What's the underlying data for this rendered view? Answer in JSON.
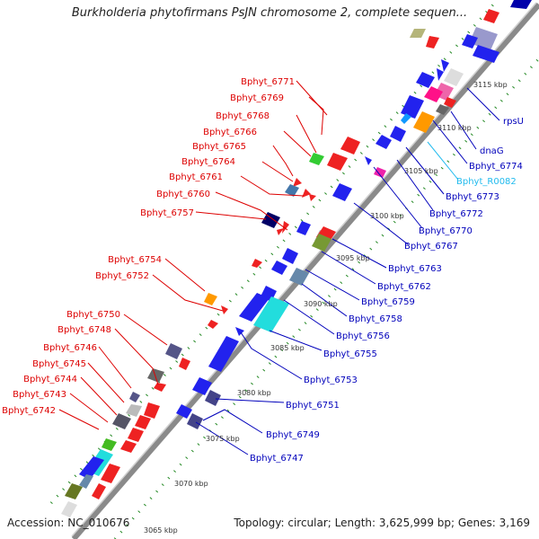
{
  "title": "Burkholderia phytofirmans PsJN chromosome 2, complete sequen...",
  "footer": {
    "accession": "Accession: NC_010676",
    "summary": "Topology: circular; Length: 3,625,999 bp; Genes: 3,169"
  },
  "colors": {
    "backbone": "#8a8a8a",
    "ticks": "#228822",
    "left_label": "#dd0000",
    "right_label": "#0000bb",
    "rna_label": "#22bbee"
  },
  "kbp_ticks": [
    "3065 kbp",
    "3070 kbp",
    "3075 kbp",
    "3080 kbp",
    "3085 kbp",
    "3090 kbp",
    "3095 kbp",
    "3100 kbp",
    "3105 kbp",
    "3110 kbp",
    "3115 kbp"
  ],
  "left_labels": [
    "Bphyt_6771",
    "Bphyt_6769",
    "Bphyt_6768",
    "Bphyt_6766",
    "Bphyt_6765",
    "Bphyt_6764",
    "Bphyt_6761",
    "Bphyt_6760",
    "Bphyt_6757",
    "Bphyt_6754",
    "Bphyt_6752",
    "Bphyt_6750",
    "Bphyt_6748",
    "Bphyt_6746",
    "Bphyt_6745",
    "Bphyt_6744",
    "Bphyt_6743",
    "Bphyt_6742"
  ],
  "right_labels": [
    "rpsU",
    "dnaG",
    "Bphyt_6774",
    "Bphyt_R0082",
    "Bphyt_6773",
    "Bphyt_6772",
    "Bphyt_6770",
    "Bphyt_6767",
    "Bphyt_6763",
    "Bphyt_6762",
    "Bphyt_6759",
    "Bphyt_6758",
    "Bphyt_6756",
    "Bphyt_6755",
    "Bphyt_6753",
    "Bphyt_6751",
    "Bphyt_6749",
    "Bphyt_6747"
  ]
}
